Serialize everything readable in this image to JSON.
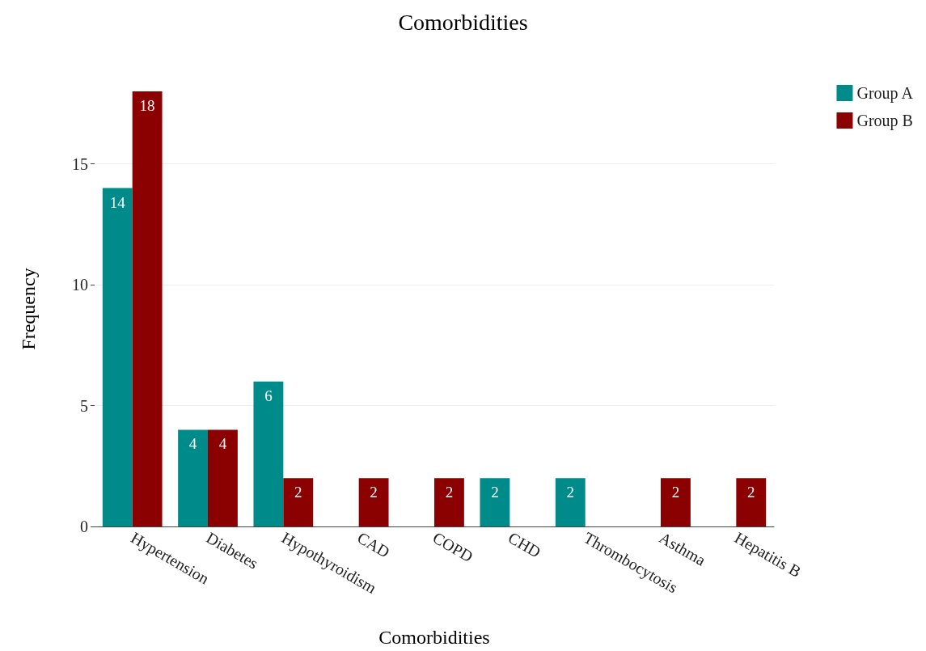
{
  "chart_data": {
    "type": "bar",
    "title": "Comorbidities",
    "xlabel": "Comorbidities",
    "ylabel": "Frequency",
    "categories": [
      "Hypertension",
      "Diabetes",
      "Hypothyroidism",
      "CAD",
      "COPD",
      "CHD",
      "Thrombocytosis",
      "Asthma",
      "Hepatitis B"
    ],
    "series": [
      {
        "name": "Group A",
        "color": "#008b8b",
        "values": [
          14,
          4,
          6,
          null,
          null,
          2,
          2,
          null,
          null
        ]
      },
      {
        "name": "Group B",
        "color": "#8b0000",
        "values": [
          18,
          4,
          2,
          2,
          2,
          null,
          null,
          2,
          2
        ]
      }
    ],
    "ylim": [
      0,
      18
    ],
    "yticks": [
      0,
      5,
      10,
      15
    ],
    "grid": "y",
    "legend": "top right",
    "data_labels": true
  }
}
